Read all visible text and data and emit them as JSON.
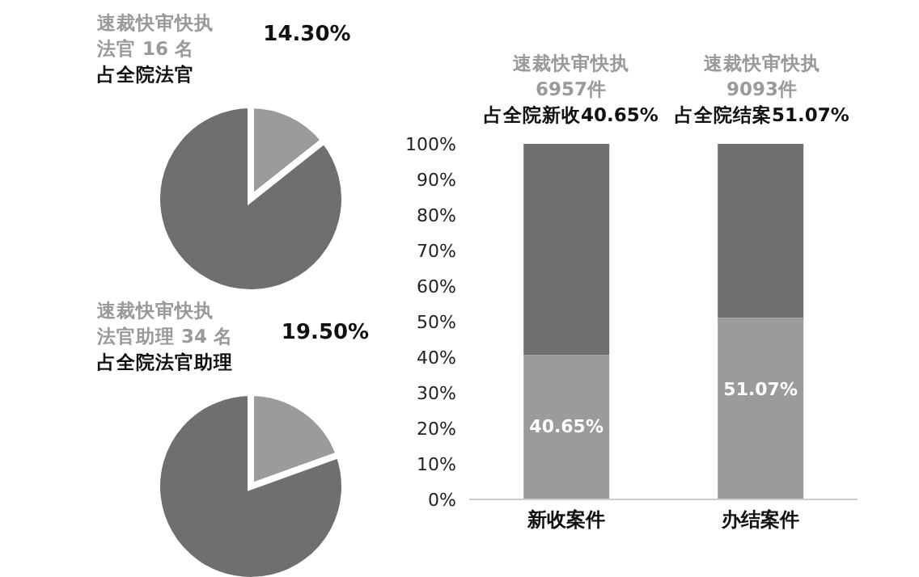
{
  "chart_data": [
    {
      "type": "pie",
      "annotations": [
        "速裁快审快执",
        "法官 16 名",
        "占全院法官"
      ],
      "categories": [
        null,
        null
      ],
      "values": [
        14.3,
        85.7
      ],
      "colors": [
        "#9b9b9b",
        "#6f6f6f"
      ],
      "value_labels": [
        "14.30%",
        null
      ]
    },
    {
      "type": "pie",
      "annotations": [
        "速裁快审快执",
        "法官助理 34 名",
        "占全院法官助理"
      ],
      "categories": [
        null,
        null
      ],
      "values": [
        19.5,
        80.5
      ],
      "colors": [
        "#9b9b9b",
        "#6f6f6f"
      ],
      "value_labels": [
        "19.50%",
        null
      ]
    },
    {
      "type": "bar",
      "stacked": true,
      "annotations": [
        "速裁快审快执",
        "6957件",
        "占全院新收40.65%",
        "速裁快审快执",
        "9093件",
        "占全院结案51.07%"
      ],
      "categories": [
        "新收案件",
        "办结案件"
      ],
      "series": [
        {
          "color": "#9b9b9b",
          "values": [
            40.65,
            51.07
          ],
          "value_labels": [
            "40.65%",
            "51.07%"
          ]
        },
        {
          "color": "#6f6f6f",
          "values": [
            59.35,
            48.93
          ]
        }
      ],
      "ylim": [
        0,
        100
      ],
      "yticks": [
        {
          "value": 0,
          "label": "0%"
        },
        {
          "value": 10,
          "label": "10%"
        },
        {
          "value": 20,
          "label": "20%"
        },
        {
          "value": 30,
          "label": "30%"
        },
        {
          "value": 40,
          "label": "40%"
        },
        {
          "value": 50,
          "label": "50%"
        },
        {
          "value": 60,
          "label": "60%"
        },
        {
          "value": 70,
          "label": "70%"
        },
        {
          "value": 80,
          "label": "80%"
        },
        {
          "value": 90,
          "label": "90%"
        },
        {
          "value": 100,
          "label": "100%"
        }
      ]
    }
  ]
}
